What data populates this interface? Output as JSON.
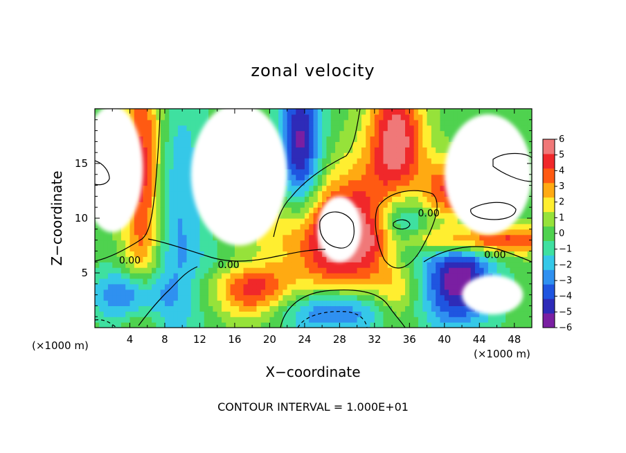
{
  "chart_data": {
    "type": "heatmap",
    "title": "zonal velocity",
    "xlabel": "X−coordinate",
    "ylabel": "Z−coordinate",
    "x_unit": "(×1000 m)",
    "y_unit": "(×1000 m)",
    "footer": "CONTOUR INTERVAL = 1.000E+01",
    "xlim": [
      0,
      50
    ],
    "ylim": [
      0,
      20
    ],
    "xticks": [
      4,
      8,
      12,
      16,
      20,
      24,
      28,
      32,
      36,
      40,
      44,
      48
    ],
    "yticks": [
      5,
      10,
      15
    ],
    "colorbar": {
      "range": [
        -6,
        6
      ],
      "ticks": [
        6,
        5,
        4,
        3,
        2,
        1,
        0,
        -1,
        -2,
        -3,
        -4,
        -5,
        -6
      ],
      "colors": [
        "#7a1fa2",
        "#2e2bb8",
        "#1f55e0",
        "#2f90f0",
        "#35c8e8",
        "#3fe0a0",
        "#4fd24f",
        "#96e23a",
        "#ffee30",
        "#ffaa12",
        "#ff5a12",
        "#f0282a",
        "#f07878"
      ]
    },
    "contour_labels": [
      {
        "text": "0.00",
        "x": 4.0,
        "y": 6.1
      },
      {
        "text": "0.00",
        "x": 15.3,
        "y": 5.7
      },
      {
        "text": "0.00",
        "x": 38.2,
        "y": 10.4
      },
      {
        "text": "0.00",
        "x": 45.8,
        "y": 6.6
      }
    ],
    "features": [
      {
        "x": 5.5,
        "y": 14.0,
        "value": 5.0,
        "sx": 1.6,
        "sy": 9.0
      },
      {
        "x": 9.5,
        "y": 8.5,
        "value": -2.5,
        "sx": 2.5,
        "sy": 10.0
      },
      {
        "x": 10.5,
        "y": 3.0,
        "value": 0.5,
        "sx": 2.2,
        "sy": 2.2
      },
      {
        "x": 4.0,
        "y": 3.0,
        "value": -4.0,
        "sx": 3.0,
        "sy": 1.6
      },
      {
        "x": 18.0,
        "y": 3.6,
        "value": 4.5,
        "sx": 3.0,
        "sy": 2.0
      },
      {
        "x": 23.5,
        "y": 16.5,
        "value": -5.5,
        "sx": 1.7,
        "sy": 5.0
      },
      {
        "x": 27.0,
        "y": 14.5,
        "value": 0.0,
        "sx": 4.0,
        "sy": 4.0
      },
      {
        "x": 34.5,
        "y": 17.5,
        "value": 5.5,
        "sx": 2.2,
        "sy": 4.0
      },
      {
        "x": 28.0,
        "y": 8.0,
        "value": 6.0,
        "sx": 5.5,
        "sy": 3.5
      },
      {
        "x": 35.0,
        "y": 9.0,
        "value": -5.5,
        "sx": 2.2,
        "sy": 2.6
      },
      {
        "x": 34.5,
        "y": 3.0,
        "value": 2.0,
        "sx": 1.8,
        "sy": 3.0
      },
      {
        "x": 27.5,
        "y": 1.5,
        "value": -4.0,
        "sx": 5.0,
        "sy": 1.5
      },
      {
        "x": 41.5,
        "y": 4.5,
        "value": -6.0,
        "sx": 2.8,
        "sy": 3.0
      },
      {
        "x": 44.5,
        "y": 8.0,
        "value": 5.0,
        "sx": 7.0,
        "sy": 0.9
      },
      {
        "x": 41.0,
        "y": 12.5,
        "value": 4.5,
        "sx": 2.5,
        "sy": 2.0
      },
      {
        "x": 31.5,
        "y": 12.0,
        "value": 1.5,
        "sx": 4.0,
        "sy": 4.0
      },
      {
        "x": 18.0,
        "y": 6.0,
        "value": -1.5,
        "sx": 4.0,
        "sy": 1.2
      }
    ],
    "blank_regions": [
      {
        "x": 2.0,
        "y": 14.5,
        "rx": 3.5,
        "ry": 5.8
      },
      {
        "x": 16.5,
        "y": 14.0,
        "rx": 5.5,
        "ry": 6.5
      },
      {
        "x": 28.0,
        "y": 9.0,
        "rx": 2.5,
        "ry": 3.0
      },
      {
        "x": 45.0,
        "y": 14.0,
        "rx": 5.0,
        "ry": 5.5
      },
      {
        "x": 45.5,
        "y": 3.0,
        "rx": 3.5,
        "ry": 1.8
      }
    ]
  }
}
